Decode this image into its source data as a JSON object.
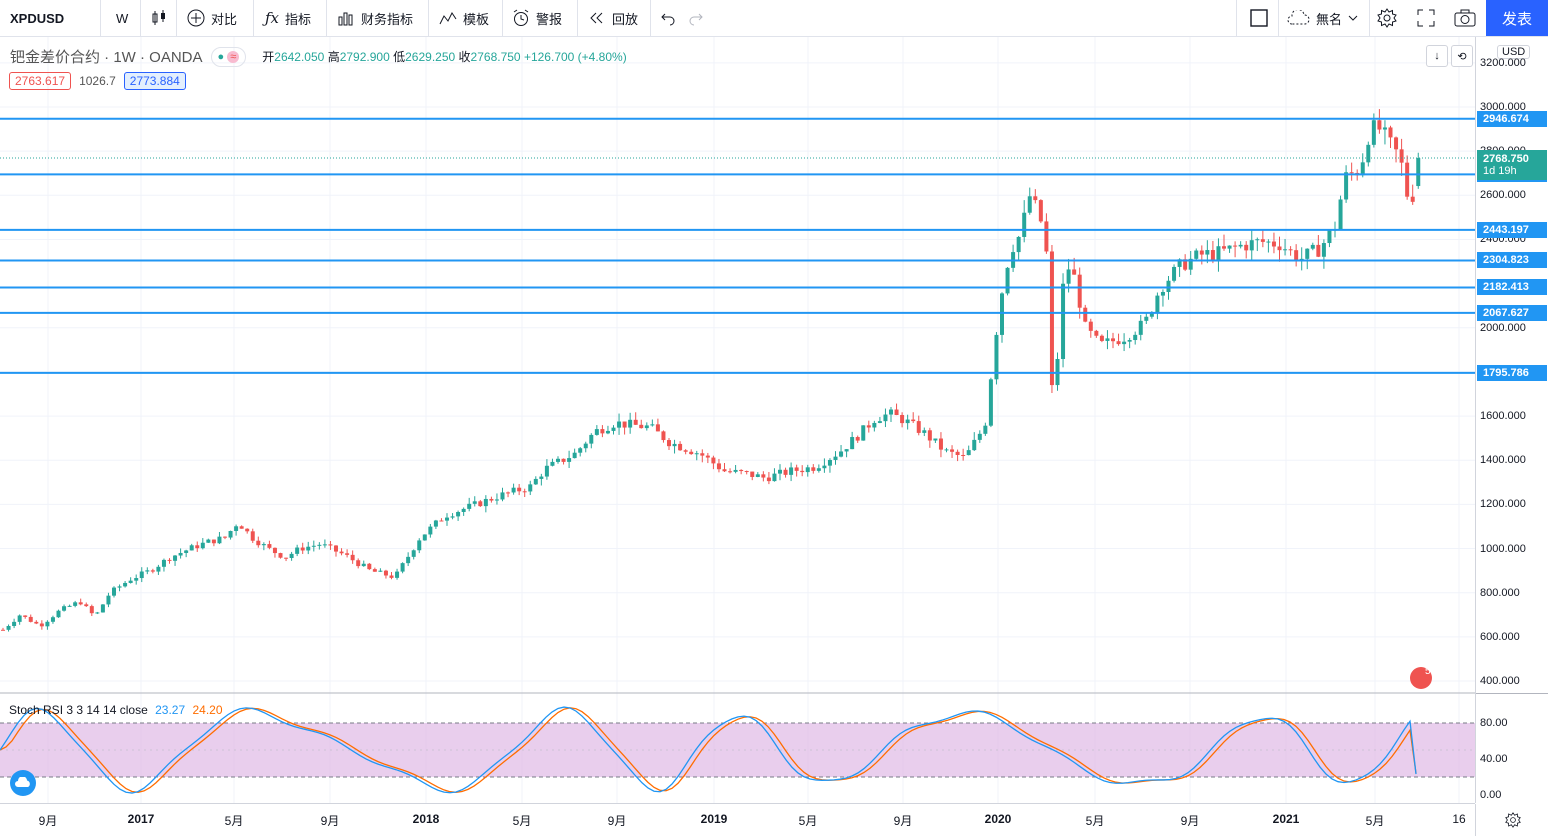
{
  "toolbar": {
    "symbol": "XPDUSD",
    "interval": "W",
    "compare": "对比",
    "indicators": "指标",
    "financials": "财务指标",
    "templates": "模板",
    "alert": "警报",
    "replay": "回放",
    "layout_name": "無名",
    "publish": "发表"
  },
  "legend": {
    "name": "钯金差价合约 · 1W · OANDA",
    "open_label": "开",
    "open": "2642.050",
    "high_label": "高",
    "high": "2792.900",
    "low_label": "低",
    "low": "2629.250",
    "close_label": "收",
    "close": "2768.750",
    "change": "+126.700 (+4.80%)",
    "sell_price": "2763.617",
    "spread": "1026.7",
    "buy_price": "2773.884"
  },
  "price_axis": {
    "currency": "USD",
    "labels": [
      "3200.000",
      "3000.000",
      "2800.000",
      "2600.000",
      "2400.000",
      "2000.000",
      "1800.000",
      "1600.000",
      "1400.000",
      "1200.000",
      "1000.000",
      "800.000",
      "600.000",
      "400.000"
    ],
    "current_price": "2768.750",
    "countdown": "1d 19h",
    "hlines": [
      "2946.674",
      "2694.930",
      "2443.197",
      "2304.823",
      "2182.413",
      "2067.627",
      "1795.786"
    ]
  },
  "oscillator": {
    "name": "Stoch RSI 3 3 14 14 close",
    "k": "23.27",
    "d": "24.20",
    "labels": [
      "80.00",
      "40.00",
      "0.00"
    ]
  },
  "time_axis": {
    "labels": [
      "9月",
      "2017",
      "5月",
      "9月",
      "2018",
      "5月",
      "9月",
      "2019",
      "5月",
      "9月",
      "2020",
      "5月",
      "9月",
      "2021",
      "5月",
      "16"
    ]
  },
  "colors": {
    "up": "#26a69a",
    "down": "#ef5350",
    "hline": "#2196f3",
    "k_line": "#2196f3",
    "d_line": "#ff6d00",
    "osc_band": "#e1bee7",
    "publish": "#2962ff"
  },
  "icons": [
    "candles-icon",
    "plus-circle-icon",
    "fx-icon",
    "bar-chart-icon",
    "template-icon",
    "alarm-icon",
    "replay-icon",
    "undo-icon",
    "redo-icon",
    "square-icon",
    "cloud-icon",
    "gear-icon",
    "fullscreen-icon",
    "camera-icon",
    "download-icon",
    "refresh-icon",
    "flag-icon"
  ]
}
